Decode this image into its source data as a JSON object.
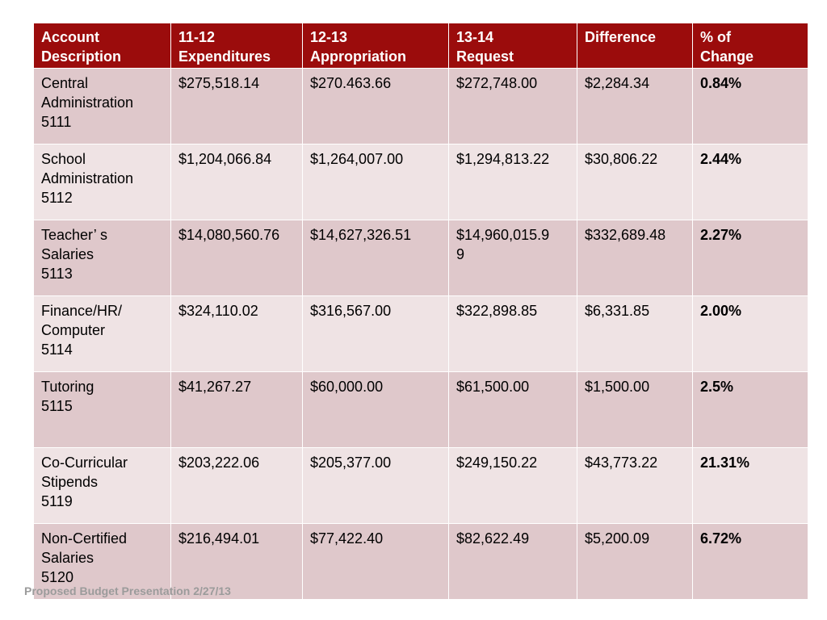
{
  "table": {
    "headers": [
      [
        "Account",
        "Description"
      ],
      [
        "11-12",
        "Expenditures"
      ],
      [
        "12-13",
        "Appropriation"
      ],
      [
        "13-14",
        "Request"
      ],
      [
        "Difference"
      ],
      [
        "% of",
        "Change"
      ]
    ],
    "rows": [
      {
        "description": [
          "Central",
          "Administration",
          "5111"
        ],
        "expenditures": "$275,518.14",
        "appropriation": "$270.463.66",
        "request": [
          "$272,748.00"
        ],
        "difference": "$2,284.34",
        "change": "0.84%"
      },
      {
        "description": [
          "School",
          "Administration",
          "5112"
        ],
        "expenditures": "$1,204,066.84",
        "appropriation": "$1,264,007.00",
        "request": [
          "$1,294,813.22"
        ],
        "difference": "$30,806.22",
        "change": "2.44%"
      },
      {
        "description": [
          "Teacher’ s",
          "Salaries",
          "5113"
        ],
        "expenditures": "$14,080,560.76",
        "appropriation": "$14,627,326.51",
        "request": [
          "$14,960,015.9",
          "9"
        ],
        "difference": "$332,689.48",
        "change": "2.27%"
      },
      {
        "description": [
          "Finance/HR/",
          "Computer",
          "5114"
        ],
        "expenditures": "$324,110.02",
        "appropriation": "$316,567.00",
        "request": [
          "$322,898.85"
        ],
        "difference": "$6,331.85",
        "change": "2.00%"
      },
      {
        "description": [
          "Tutoring",
          "5115"
        ],
        "expenditures": "$41,267.27",
        "appropriation": "$60,000.00",
        "request": [
          "$61,500.00"
        ],
        "difference": "$1,500.00",
        "change": "2.5%"
      },
      {
        "description": [
          "Co-Curricular",
          "Stipends",
          "5119"
        ],
        "expenditures": "$203,222.06",
        "appropriation": "$205,377.00",
        "request": [
          "$249,150.22"
        ],
        "difference": "$43,773.22",
        "change": "21.31%"
      },
      {
        "description": [
          "Non-Certified",
          "Salaries",
          "5120"
        ],
        "expenditures": "$216,494.01",
        "appropriation": "$77,422.40",
        "request": [
          "$82,622.49"
        ],
        "difference": "$5,200.09",
        "change": "6.72%"
      }
    ]
  },
  "footer": {
    "text": "Proposed Budget Presentation 2/27/13"
  },
  "colors": {
    "header_background": "#9b0c0c",
    "header_text": "#ffffff",
    "row_odd": "#dfc8cb",
    "row_even": "#efe3e4",
    "footer_text": "#9b9b9b"
  }
}
